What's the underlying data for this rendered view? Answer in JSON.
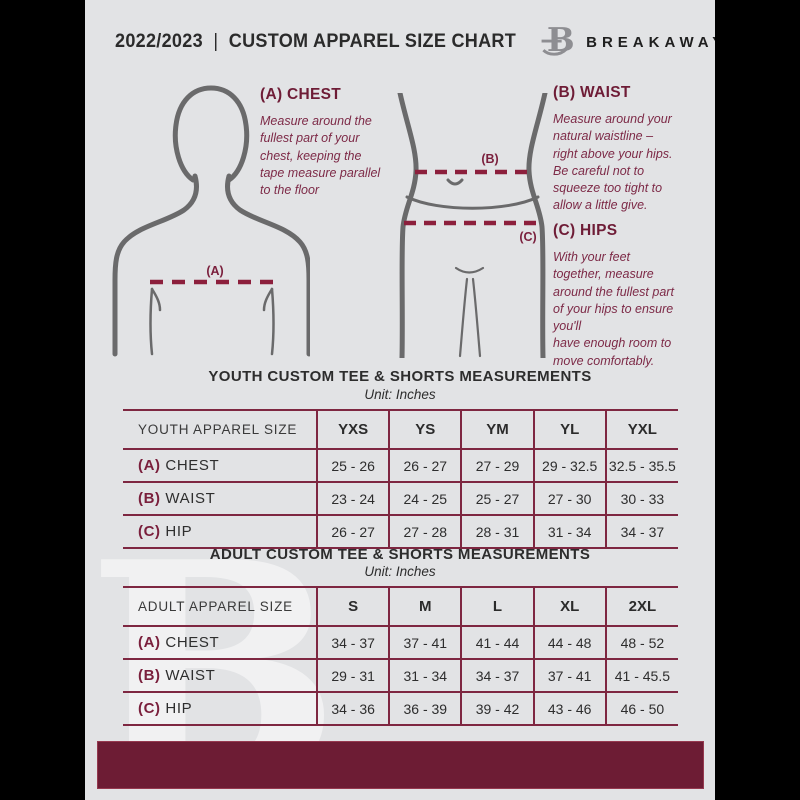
{
  "header": {
    "year": "2022/2023",
    "separator": "|",
    "title": "CUSTOM APPAREL SIZE CHART",
    "brand": "BREAKAWAY",
    "logo_letter": "B"
  },
  "instructions": [
    {
      "id": "A",
      "heading": "(A) CHEST",
      "body": "Measure around the\nfullest part of your\nchest, keeping the\ntape measure parallel\nto the floor"
    },
    {
      "id": "B",
      "heading": "(B) WAIST",
      "body": "Measure around your\nnatural waistline –\nright above your hips.\nBe careful not to\nsqueeze too tight to\nallow a little give."
    },
    {
      "id": "C",
      "heading": "(C) HIPS",
      "body": "With your feet\ntogether, measure\naround the fullest part\nof your hips to ensure\nyou'll\nhave enough room to\nmove comfortably."
    }
  ],
  "diagram_labels": {
    "chest": "(A)",
    "waist": "(B)",
    "hips": "(C)"
  },
  "watermark_letter": "B",
  "tables": [
    {
      "title": "YOUTH CUSTOM TEE & SHORTS MEASUREMENTS",
      "unit": "Unit: Inches",
      "header": [
        "YOUTH APPAREL SIZE",
        "YXS",
        "YS",
        "YM",
        "YL",
        "YXL"
      ],
      "rows": [
        {
          "label_prefix": "(A)",
          "label": "CHEST",
          "values": [
            "25 - 26",
            "26 - 27",
            "27 - 29",
            "29 - 32.5",
            "32.5 - 35.5"
          ]
        },
        {
          "label_prefix": "(B)",
          "label": "WAIST",
          "values": [
            "23 - 24",
            "24 - 25",
            "25 - 27",
            "27 - 30",
            "30 - 33"
          ]
        },
        {
          "label_prefix": "(C)",
          "label": "HIP",
          "values": [
            "26 - 27",
            "27 - 28",
            "28 - 31",
            "31 - 34",
            "34 - 37"
          ]
        }
      ]
    },
    {
      "title": "ADULT CUSTOM TEE & SHORTS MEASUREMENTS",
      "unit": "Unit: Inches",
      "header": [
        "ADULT APPAREL SIZE",
        "S",
        "M",
        "L",
        "XL",
        "2XL"
      ],
      "rows": [
        {
          "label_prefix": "(A)",
          "label": "CHEST",
          "values": [
            "34 - 37",
            "37 - 41",
            "41 - 44",
            "44 - 48",
            "48 - 52"
          ]
        },
        {
          "label_prefix": "(B)",
          "label": "WAIST",
          "values": [
            "29 - 31",
            "31 - 34",
            "34 - 37",
            "37 - 41",
            "41 - 45.5"
          ]
        },
        {
          "label_prefix": "(C)",
          "label": "HIP",
          "values": [
            "34 - 36",
            "36 - 39",
            "39 - 42",
            "43 - 46",
            "46 - 50"
          ]
        }
      ]
    }
  ],
  "colors": {
    "accent_border": "#7e2741",
    "dash_line": "#8c1f3c",
    "maroon_text": "#7d2a47",
    "heading_maroon": "#6e1c36",
    "footer_bar": "#6d1c34",
    "page_bg": "#e2e3e5",
    "silhouette": "#6a6a6b",
    "text_dark": "#2d2d2d"
  }
}
